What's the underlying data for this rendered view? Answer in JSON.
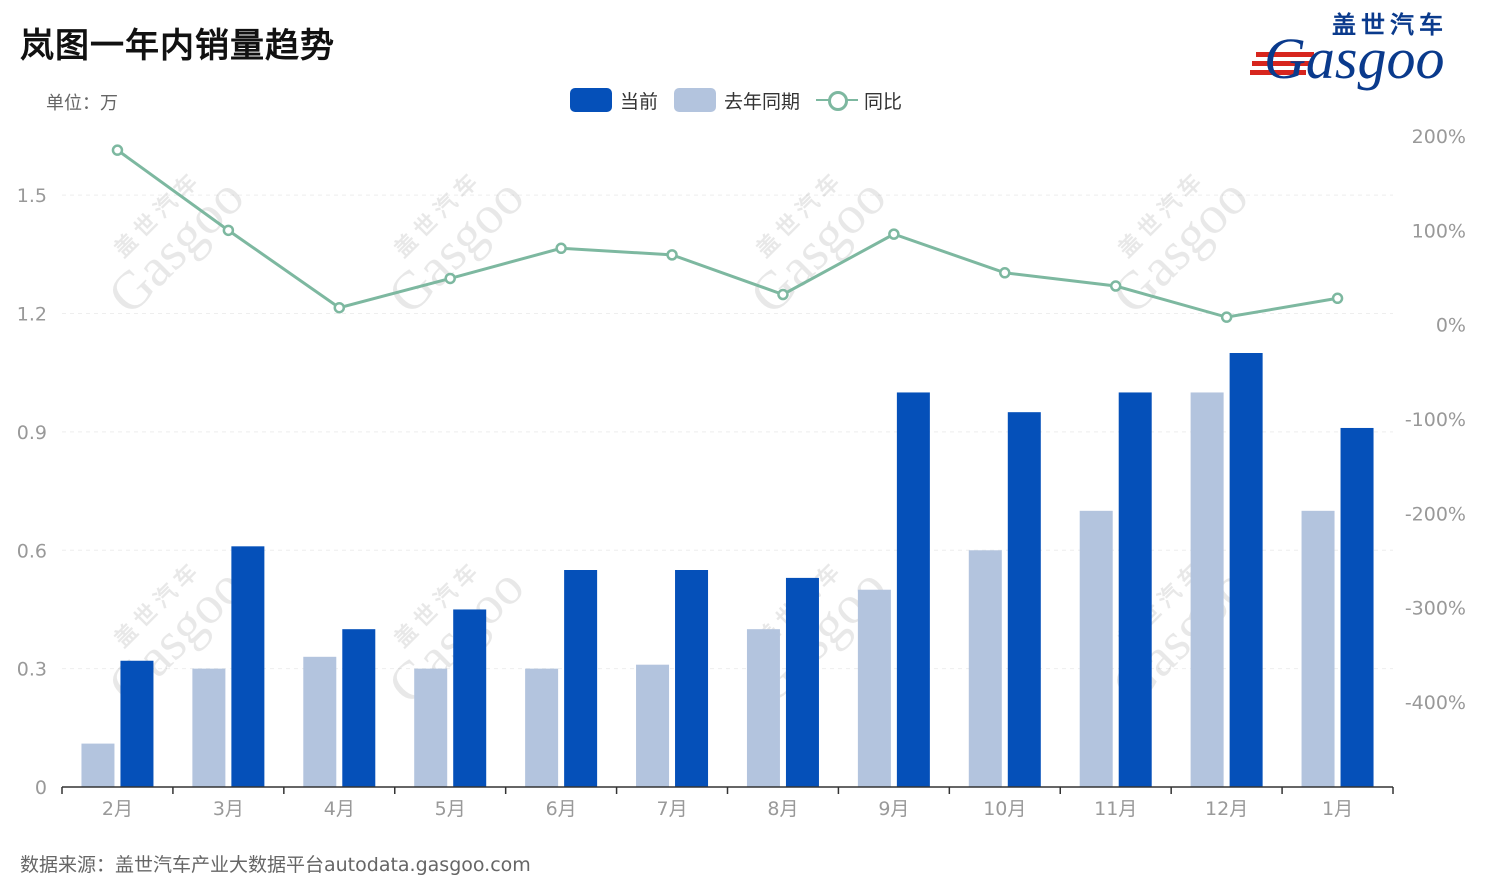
{
  "title": "岚图一年内销量趋势",
  "unit_label": "单位：万",
  "source": "数据来源：盖世汽车产业大数据平台autodata.gasgoo.com",
  "logo": {
    "cn": "盖世汽车",
    "en": "Gasgoo"
  },
  "watermark": {
    "cn": "盖世汽车",
    "en": "Gasgoo"
  },
  "colors": {
    "current": "#0550b9",
    "last_year": "#b3c4de",
    "yoy": "#7db8a0",
    "axis": "#333333",
    "tick": "#999999",
    "grid": "#eeeeee"
  },
  "legend": [
    {
      "name": "当前",
      "kind": "bar",
      "color": "#0550b9"
    },
    {
      "name": "去年同期",
      "kind": "bar",
      "color": "#b3c4de"
    },
    {
      "name": "同比",
      "kind": "line",
      "color": "#7db8a0"
    }
  ],
  "chart_data": {
    "type": "bar",
    "title": "岚图一年内销量趋势",
    "categories": [
      "2月",
      "3月",
      "4月",
      "5月",
      "6月",
      "7月",
      "8月",
      "9月",
      "10月",
      "11月",
      "12月",
      "1月"
    ],
    "series": [
      {
        "name": "去年同期",
        "type": "bar",
        "axis": "left",
        "values": [
          0.11,
          0.3,
          0.33,
          0.3,
          0.3,
          0.31,
          0.4,
          0.5,
          0.6,
          0.7,
          1.0,
          0.7
        ]
      },
      {
        "name": "当前",
        "type": "bar",
        "axis": "left",
        "values": [
          0.32,
          0.61,
          0.4,
          0.45,
          0.55,
          0.55,
          0.53,
          1.0,
          0.95,
          1.0,
          1.1,
          0.91
        ]
      },
      {
        "name": "同比",
        "type": "line",
        "axis": "right",
        "values": [
          185,
          100,
          18,
          49,
          81,
          74,
          32,
          96,
          55,
          41,
          8,
          28
        ]
      }
    ],
    "y_left": {
      "min": 0,
      "max": 1.65,
      "ticks": [
        "0",
        "0.3",
        "0.6",
        "0.9",
        "1.2",
        "1.5"
      ],
      "tick_values": [
        0,
        0.3,
        0.6,
        0.9,
        1.2,
        1.5
      ]
    },
    "y_right": {
      "min": -490,
      "max": 200,
      "ticks": [
        "200%",
        "100%",
        "0%",
        "-100%",
        "-200%",
        "-300%",
        "-400%"
      ],
      "tick_values": [
        200,
        100,
        0,
        -100,
        -200,
        -300,
        -400
      ]
    },
    "grid": true,
    "legend_position": "top-center"
  }
}
